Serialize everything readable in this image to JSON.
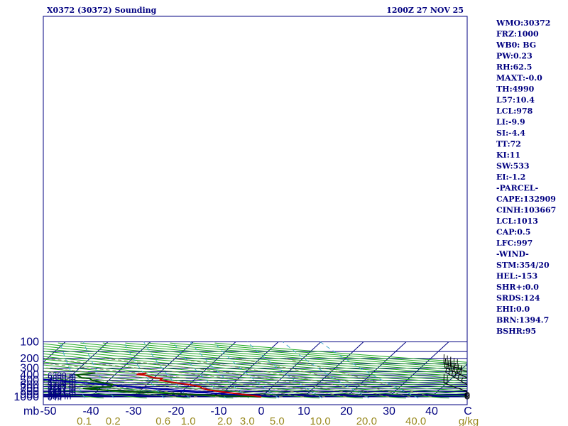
{
  "header": {
    "station": "X0372 (30372) Sounding",
    "time": "1200Z 27 NOV 25"
  },
  "indices": [
    "WMO:30372",
    "FRZ:1000",
    "WB0: BG",
    "PW:0.23",
    "RH:62.5",
    "MAXT:-0.0",
    "TH:4990",
    "L57:10.4",
    "LCL:978",
    "LI:-9.9",
    "SI:-4.4",
    "TT:72",
    "KI:11",
    "SW:533",
    "EI:-1.2",
    "-PARCEL-",
    "CAPE:132909",
    "CINH:103667",
    "LCL:1013",
    "CAP:0.5",
    "LFC:997",
    "-WIND-",
    "STM:354/20",
    "HEL:-153",
    "SHR+:0.0",
    "SRDS:124",
    "EHI:0.0",
    "BRN:1394.7",
    "BSHR:95"
  ],
  "colors": {
    "isobar": "#000080",
    "isotherm": "#000080",
    "dry_adiabat": "#22aa22",
    "mixing_ratio": "#44aacc",
    "moist_adiabat": "#888866",
    "temperature": "#cc0000",
    "dewpoint": "#005500",
    "parcel": "#0000aa",
    "text": "#000080",
    "mixing_label": "#9a8a20"
  },
  "chart_data": {
    "type": "skew-t",
    "title": "X0372 (30372) Sounding",
    "pressure_range_mb": [
      100,
      1000
    ],
    "pressure_labels": [
      "100",
      "200",
      "300",
      "400",
      "500",
      "600",
      "700",
      "800",
      "900",
      "1000"
    ],
    "pressure_label_values": [
      100,
      200,
      300,
      400,
      500,
      600,
      700,
      800,
      900,
      1000
    ],
    "isobars_mb": [
      100,
      150,
      200,
      250,
      300,
      350,
      400,
      450,
      500,
      550,
      600,
      650,
      700,
      750,
      800,
      850,
      900,
      925,
      950,
      975,
      1000
    ],
    "temp_unit_label": "C",
    "pressure_unit_label": "mb",
    "temp_labels": [
      "-50",
      "-40",
      "-30",
      "-20",
      "-10",
      "0",
      "10",
      "20",
      "30",
      "40"
    ],
    "temp_label_values": [
      -50,
      -40,
      -30,
      -20,
      -10,
      0,
      10,
      20,
      30,
      40
    ],
    "mixing_ratio_unit": "g/kg",
    "mixing_ratio_labels": [
      "0.1",
      "0.2",
      "0.6",
      "1.0",
      "2.0",
      "3.0",
      "5.0",
      "10.0",
      "20.0",
      "40.0"
    ],
    "mixing_ratio_values": [
      0.1,
      0.2,
      0.6,
      1.0,
      2.0,
      3.0,
      5.0,
      10.0,
      20.0,
      40.0
    ],
    "height_labels": [
      "6390 m",
      "5658 m",
      "4990 m",
      "4355 m",
      "3768 m",
      "3207 m",
      "2687 m",
      "2187 m",
      "1681 m",
      "1224 m",
      "794 m",
      "386 m",
      "0 m"
    ],
    "height_label_pressures": [
      400,
      450,
      500,
      550,
      600,
      650,
      700,
      750,
      800,
      850,
      900,
      950,
      1000
    ],
    "temperature": [
      {
        "p": 1000,
        "t": 0
      },
      {
        "p": 950,
        "t": -2
      },
      {
        "p": 900,
        "t": -5
      },
      {
        "p": 850,
        "t": -8
      },
      {
        "p": 800,
        "t": -11
      },
      {
        "p": 750,
        "t": -14
      },
      {
        "p": 700,
        "t": -16
      },
      {
        "p": 650,
        "t": -17
      },
      {
        "p": 600,
        "t": -20
      },
      {
        "p": 550,
        "t": -24
      },
      {
        "p": 500,
        "t": -28
      },
      {
        "p": 460,
        "t": -28
      },
      {
        "p": 450,
        "t": -30
      },
      {
        "p": 400,
        "t": -33
      },
      {
        "p": 390,
        "t": -35
      },
      {
        "p": 370,
        "t": -33
      }
    ],
    "dewpoint": [
      {
        "p": 1000,
        "t": 0
      },
      {
        "p": 950,
        "t": -10
      },
      {
        "p": 900,
        "t": -18
      },
      {
        "p": 850,
        "t": -25
      },
      {
        "p": 800,
        "t": -32
      },
      {
        "p": 750,
        "t": -39
      },
      {
        "p": 700,
        "t": -44
      },
      {
        "p": 650,
        "t": -38
      },
      {
        "p": 600,
        "t": -38
      },
      {
        "p": 550,
        "t": -41
      },
      {
        "p": 500,
        "t": -44
      },
      {
        "p": 460,
        "t": -45
      },
      {
        "p": 450,
        "t": -47
      },
      {
        "p": 400,
        "t": -49
      },
      {
        "p": 390,
        "t": -48
      },
      {
        "p": 370,
        "t": -45
      }
    ],
    "parcel": [
      {
        "p": 1000,
        "t": 0
      },
      {
        "p": 950,
        "t": -4.1
      },
      {
        "p": 900,
        "t": -8.4
      },
      {
        "p": 850,
        "t": -12.9
      },
      {
        "p": 800,
        "t": -17.6
      },
      {
        "p": 750,
        "t": -22.6
      },
      {
        "p": 700,
        "t": -27.9
      },
      {
        "p": 650,
        "t": -33.5
      },
      {
        "p": 600,
        "t": -39.5
      },
      {
        "p": 550,
        "t": -45.9
      },
      {
        "p": 500,
        "t": -52.9
      },
      {
        "p": 450,
        "t": -60.5
      },
      {
        "p": 400,
        "t": -68.9
      },
      {
        "p": 350,
        "t": -78.3
      },
      {
        "p": 300,
        "t": -89.0
      },
      {
        "p": 250,
        "t": -101.5
      },
      {
        "p": 200,
        "t": -116.4
      },
      {
        "p": 150,
        "t": -135.0
      },
      {
        "p": 130,
        "t": -143.9
      }
    ],
    "wind_barbs": [
      {
        "p": 1000,
        "dir": 0,
        "spd": 0
      },
      {
        "p": 950,
        "dir": 0,
        "spd": 0
      },
      {
        "p": 900,
        "dir": 0,
        "spd": 0
      },
      {
        "p": 800,
        "dir": 290,
        "spd": 20
      },
      {
        "p": 600,
        "dir": 300,
        "spd": 55
      },
      {
        "p": 450,
        "dir": 295,
        "spd": 60
      },
      {
        "p": 350,
        "dir": 290,
        "spd": 55
      }
    ]
  }
}
